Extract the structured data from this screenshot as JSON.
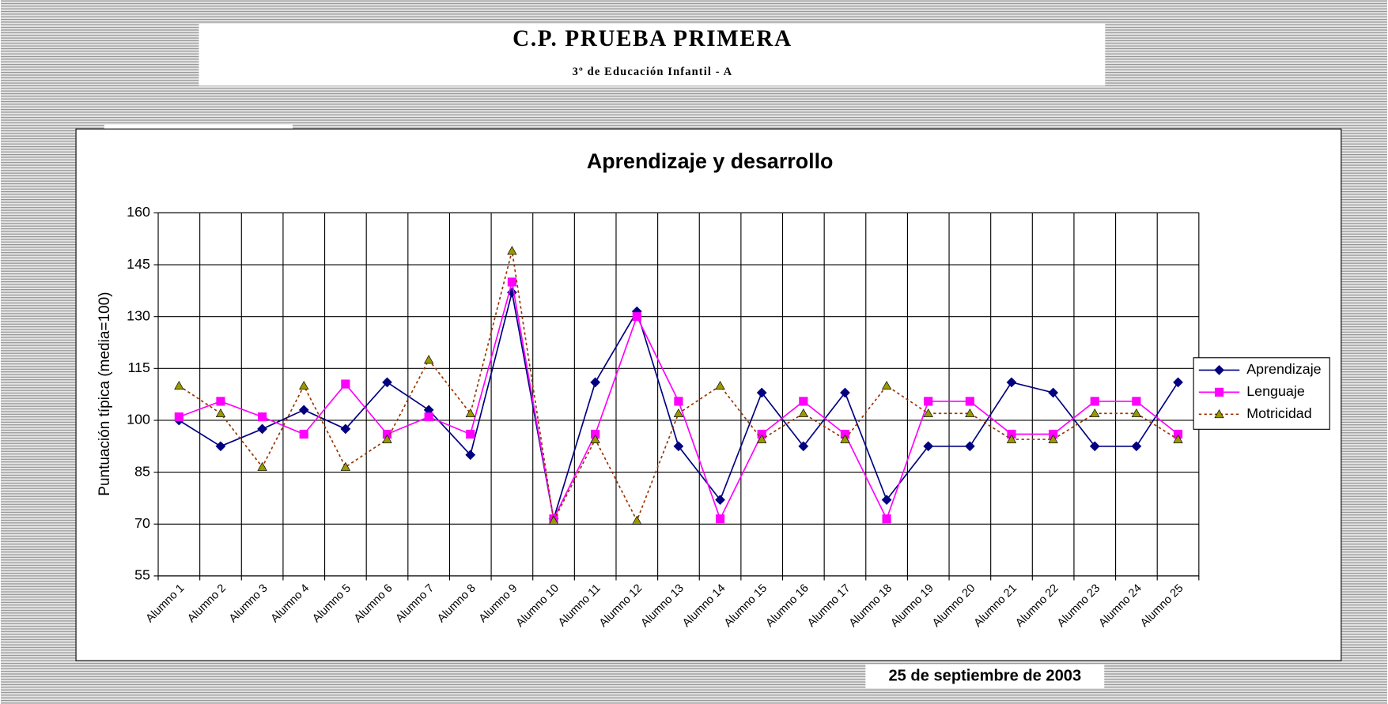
{
  "header": {
    "title": "C.P. PRUEBA PRIMERA",
    "subtitle": "3º de Educación Infantil  -  A"
  },
  "chart_data": {
    "type": "line",
    "title": "Aprendizaje y desarrollo",
    "y_label": "Puntuación típica (media=100)",
    "categories": [
      "Alumno 1",
      "Alumno 2",
      "Alumno 3",
      "Alumno 4",
      "Alumno 5",
      "Alumno 6",
      "Alumno 7",
      "Alumno 8",
      "Alumno 9",
      "Alumno 10",
      "Alumno 11",
      "Alumno 12",
      "Alumno 13",
      "Alumno 14",
      "Alumno 15",
      "Alumno 16",
      "Alumno 17",
      "Alumno 18",
      "Alumno 19",
      "Alumno 20",
      "Alumno 21",
      "Alumno 22",
      "Alumno 23",
      "Alumno 24",
      "Alumno 25"
    ],
    "series": [
      {
        "name": "Aprendizaje",
        "color": "#000080",
        "marker": "diamond",
        "marker_color": "#000080",
        "dash": false,
        "values": [
          100,
          92.5,
          97.5,
          103,
          97.5,
          111,
          103,
          90,
          137,
          71.5,
          111,
          131.5,
          92.5,
          77,
          108,
          92.5,
          108,
          77,
          92.5,
          92.5,
          111,
          108,
          92.5,
          92.5,
          111
        ]
      },
      {
        "name": "Lenguaje",
        "color": "#ff00ff",
        "marker": "square",
        "marker_color": "#ff00ff",
        "dash": false,
        "values": [
          101,
          105.5,
          101,
          96,
          110.5,
          96,
          101,
          96,
          140,
          71.5,
          96,
          130,
          105.5,
          71.5,
          96,
          105.5,
          96,
          71.5,
          105.5,
          105.5,
          96,
          96,
          105.5,
          105.5,
          96
        ]
      },
      {
        "name": "Motricidad",
        "color": "#993300",
        "marker": "triangle",
        "marker_color": "#999900",
        "dash": true,
        "values": [
          110,
          102,
          86.5,
          110,
          86.5,
          94.5,
          117.5,
          102,
          149,
          71,
          94.5,
          71,
          102,
          110,
          94.5,
          102,
          94.5,
          110,
          102,
          102,
          94.5,
          94.5,
          102,
          102,
          94.5
        ]
      }
    ],
    "ylim": [
      55,
      160
    ],
    "yticks": [
      55,
      70,
      85,
      100,
      115,
      130,
      145,
      160
    ],
    "grid": true,
    "legend": "right"
  },
  "footer": {
    "date": "25 de septiembre de 2003"
  }
}
